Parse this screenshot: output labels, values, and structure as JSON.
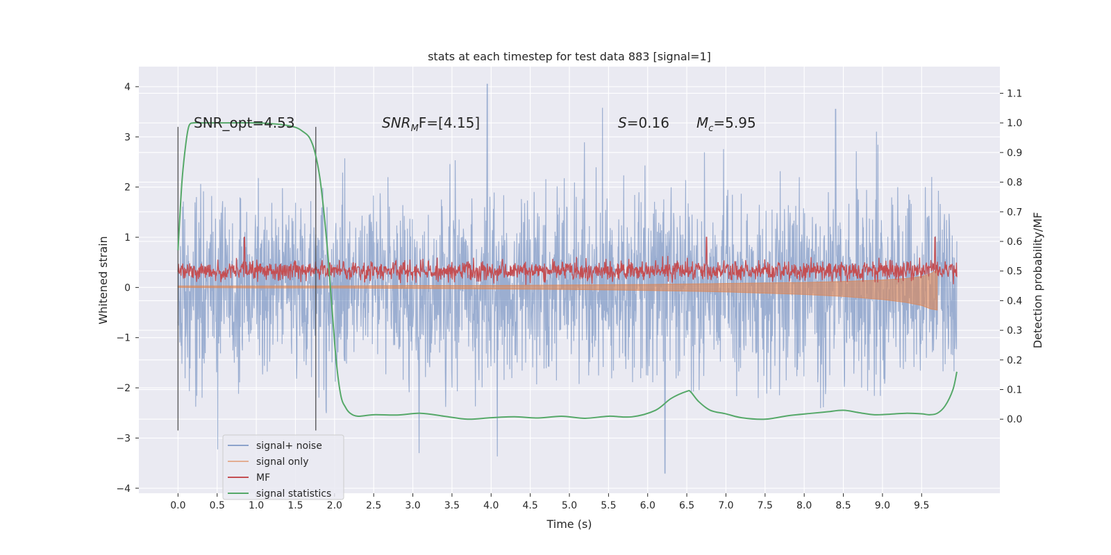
{
  "chart_data": {
    "type": "line",
    "title": "stats at each timestep for test data 883 [signal=1]",
    "xlabel": "Time (s)",
    "ylabel": "Whitened strain",
    "y2label": "Detection probability/MF",
    "xlim": [
      -0.5,
      10.5
    ],
    "ylim": [
      -4.1,
      4.4
    ],
    "y2lim": [
      -0.25,
      1.19
    ],
    "x_ticks": [
      "0.0",
      "0.5",
      "1.0",
      "1.5",
      "2.0",
      "2.5",
      "3.0",
      "3.5",
      "4.0",
      "4.5",
      "5.0",
      "5.5",
      "6.0",
      "6.5",
      "7.0",
      "7.5",
      "8.0",
      "8.5",
      "9.0",
      "9.5"
    ],
    "y_ticks": [
      "4",
      "3",
      "2",
      "1",
      "0",
      "−1",
      "−2",
      "−3",
      "−4"
    ],
    "y2_ticks": [
      "1.1",
      "1.0",
      "0.9",
      "0.8",
      "0.7",
      "0.6",
      "0.5",
      "0.4",
      "0.3",
      "0.2",
      "0.1",
      "0.0"
    ],
    "grid": true,
    "legend_position": "bottom-left",
    "annotations": {
      "snr_opt": "SNR_opt=4.53",
      "snr_mf_prefix": "SNR",
      "snr_mf_sub": "M",
      "snr_mf_rest": "F=[4.15]",
      "s_italic": "S",
      "s_value": "=0.16",
      "mc_italic": "M",
      "mc_sub": "c",
      "mc_value": "=5.95"
    },
    "vlines_x": [
      0.0,
      1.76
    ],
    "vlines_y": [
      -2.85,
      3.2
    ],
    "series": [
      {
        "name": "signal+ noise",
        "color": "#4c72b0",
        "alpha": 0.5,
        "axis": "left",
        "x_range": [
          0,
          9.95
        ],
        "amplitude_std": 1.0,
        "note_peaks": [
          [
            3.95,
            4.05
          ],
          [
            8.4,
            3.55
          ],
          [
            6.22,
            -3.7
          ],
          [
            3.08,
            -3.3
          ]
        ]
      },
      {
        "name": "signal only",
        "color": "#dd8452",
        "alpha": 0.5,
        "axis": "left",
        "x": [
          0.0,
          1.0,
          2.0,
          3.0,
          4.0,
          5.0,
          6.0,
          7.0,
          8.0,
          8.5,
          9.0,
          9.3,
          9.5,
          9.62,
          9.7
        ],
        "upper": [
          0.03,
          0.03,
          0.03,
          0.04,
          0.04,
          0.05,
          0.06,
          0.08,
          0.1,
          0.12,
          0.15,
          0.18,
          0.22,
          0.28,
          0.35
        ],
        "lower": [
          0.0,
          -0.01,
          -0.01,
          -0.02,
          -0.03,
          -0.04,
          -0.06,
          -0.09,
          -0.14,
          -0.18,
          -0.24,
          -0.3,
          -0.36,
          -0.43,
          -0.45
        ]
      },
      {
        "name": "MF",
        "color": "#c44e52",
        "alpha": 1.0,
        "axis": "left",
        "x_range": [
          0,
          9.95
        ],
        "baseline": 0.33,
        "spread": 0.18,
        "note_peaks": [
          [
            0.85,
            1.0
          ],
          [
            6.75,
            1.0
          ],
          [
            9.67,
            1.0
          ]
        ]
      },
      {
        "name": "signal statistics",
        "color": "#55a868",
        "alpha": 1.0,
        "axis": "right",
        "x": [
          0.0,
          0.05,
          0.1,
          0.14,
          0.2,
          0.3,
          0.5,
          1.0,
          1.3,
          1.5,
          1.6,
          1.68,
          1.75,
          1.82,
          1.9,
          1.96,
          2.02,
          2.08,
          2.14,
          2.2,
          2.3,
          2.5,
          2.8,
          3.1,
          3.4,
          3.7,
          4.0,
          4.3,
          4.6,
          4.9,
          5.2,
          5.5,
          5.8,
          6.1,
          6.3,
          6.5,
          6.55,
          6.65,
          6.8,
          7.0,
          7.2,
          7.5,
          7.8,
          8.1,
          8.3,
          8.5,
          8.7,
          8.9,
          9.1,
          9.3,
          9.5,
          9.6,
          9.7,
          9.8,
          9.9,
          9.95
        ],
        "y": [
          0.57,
          0.8,
          0.93,
          0.99,
          1.0,
          1.0,
          1.0,
          1.0,
          0.995,
          0.985,
          0.97,
          0.95,
          0.9,
          0.8,
          0.6,
          0.4,
          0.2,
          0.08,
          0.04,
          0.02,
          0.01,
          0.015,
          0.014,
          0.02,
          0.01,
          0.0,
          0.005,
          0.008,
          0.004,
          0.01,
          0.003,
          0.01,
          0.008,
          0.03,
          0.07,
          0.094,
          0.092,
          0.06,
          0.03,
          0.018,
          0.005,
          0.0,
          0.012,
          0.02,
          0.025,
          0.03,
          0.022,
          0.015,
          0.017,
          0.02,
          0.018,
          0.015,
          0.02,
          0.045,
          0.1,
          0.16
        ]
      }
    ]
  }
}
